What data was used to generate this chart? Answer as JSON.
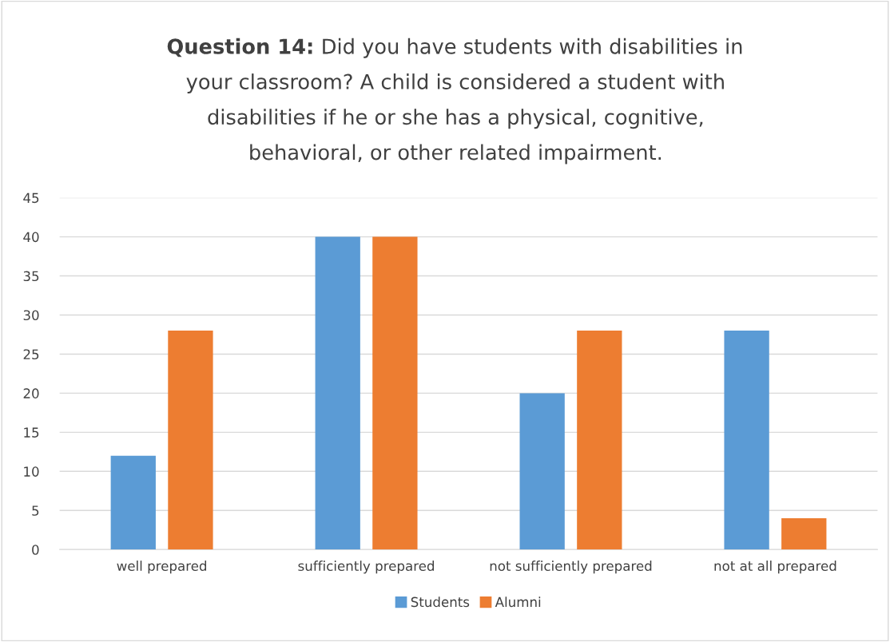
{
  "chart_data": {
    "type": "bar",
    "title": "Question 14: Did you have students with disabilities in\nyour classroom? A child is considered a student with\ndisabilities if he or she has a physical, cognitive,\nbehavioral, or other related impairment.",
    "categories": [
      "well prepared",
      "sufficiently prepared",
      "not sufficiently prepared",
      "not at all prepared"
    ],
    "series": [
      {
        "name": "Students",
        "color": "#5b9bd5",
        "values": [
          12,
          40,
          20,
          28
        ]
      },
      {
        "name": "Alumni",
        "color": "#ed7d31",
        "values": [
          28,
          40,
          28,
          4
        ]
      }
    ],
    "ylim": [
      0,
      45
    ],
    "yticks": [
      0,
      5,
      10,
      15,
      20,
      25,
      30,
      35,
      40,
      45
    ],
    "grid": "y",
    "legend": "bottom"
  }
}
